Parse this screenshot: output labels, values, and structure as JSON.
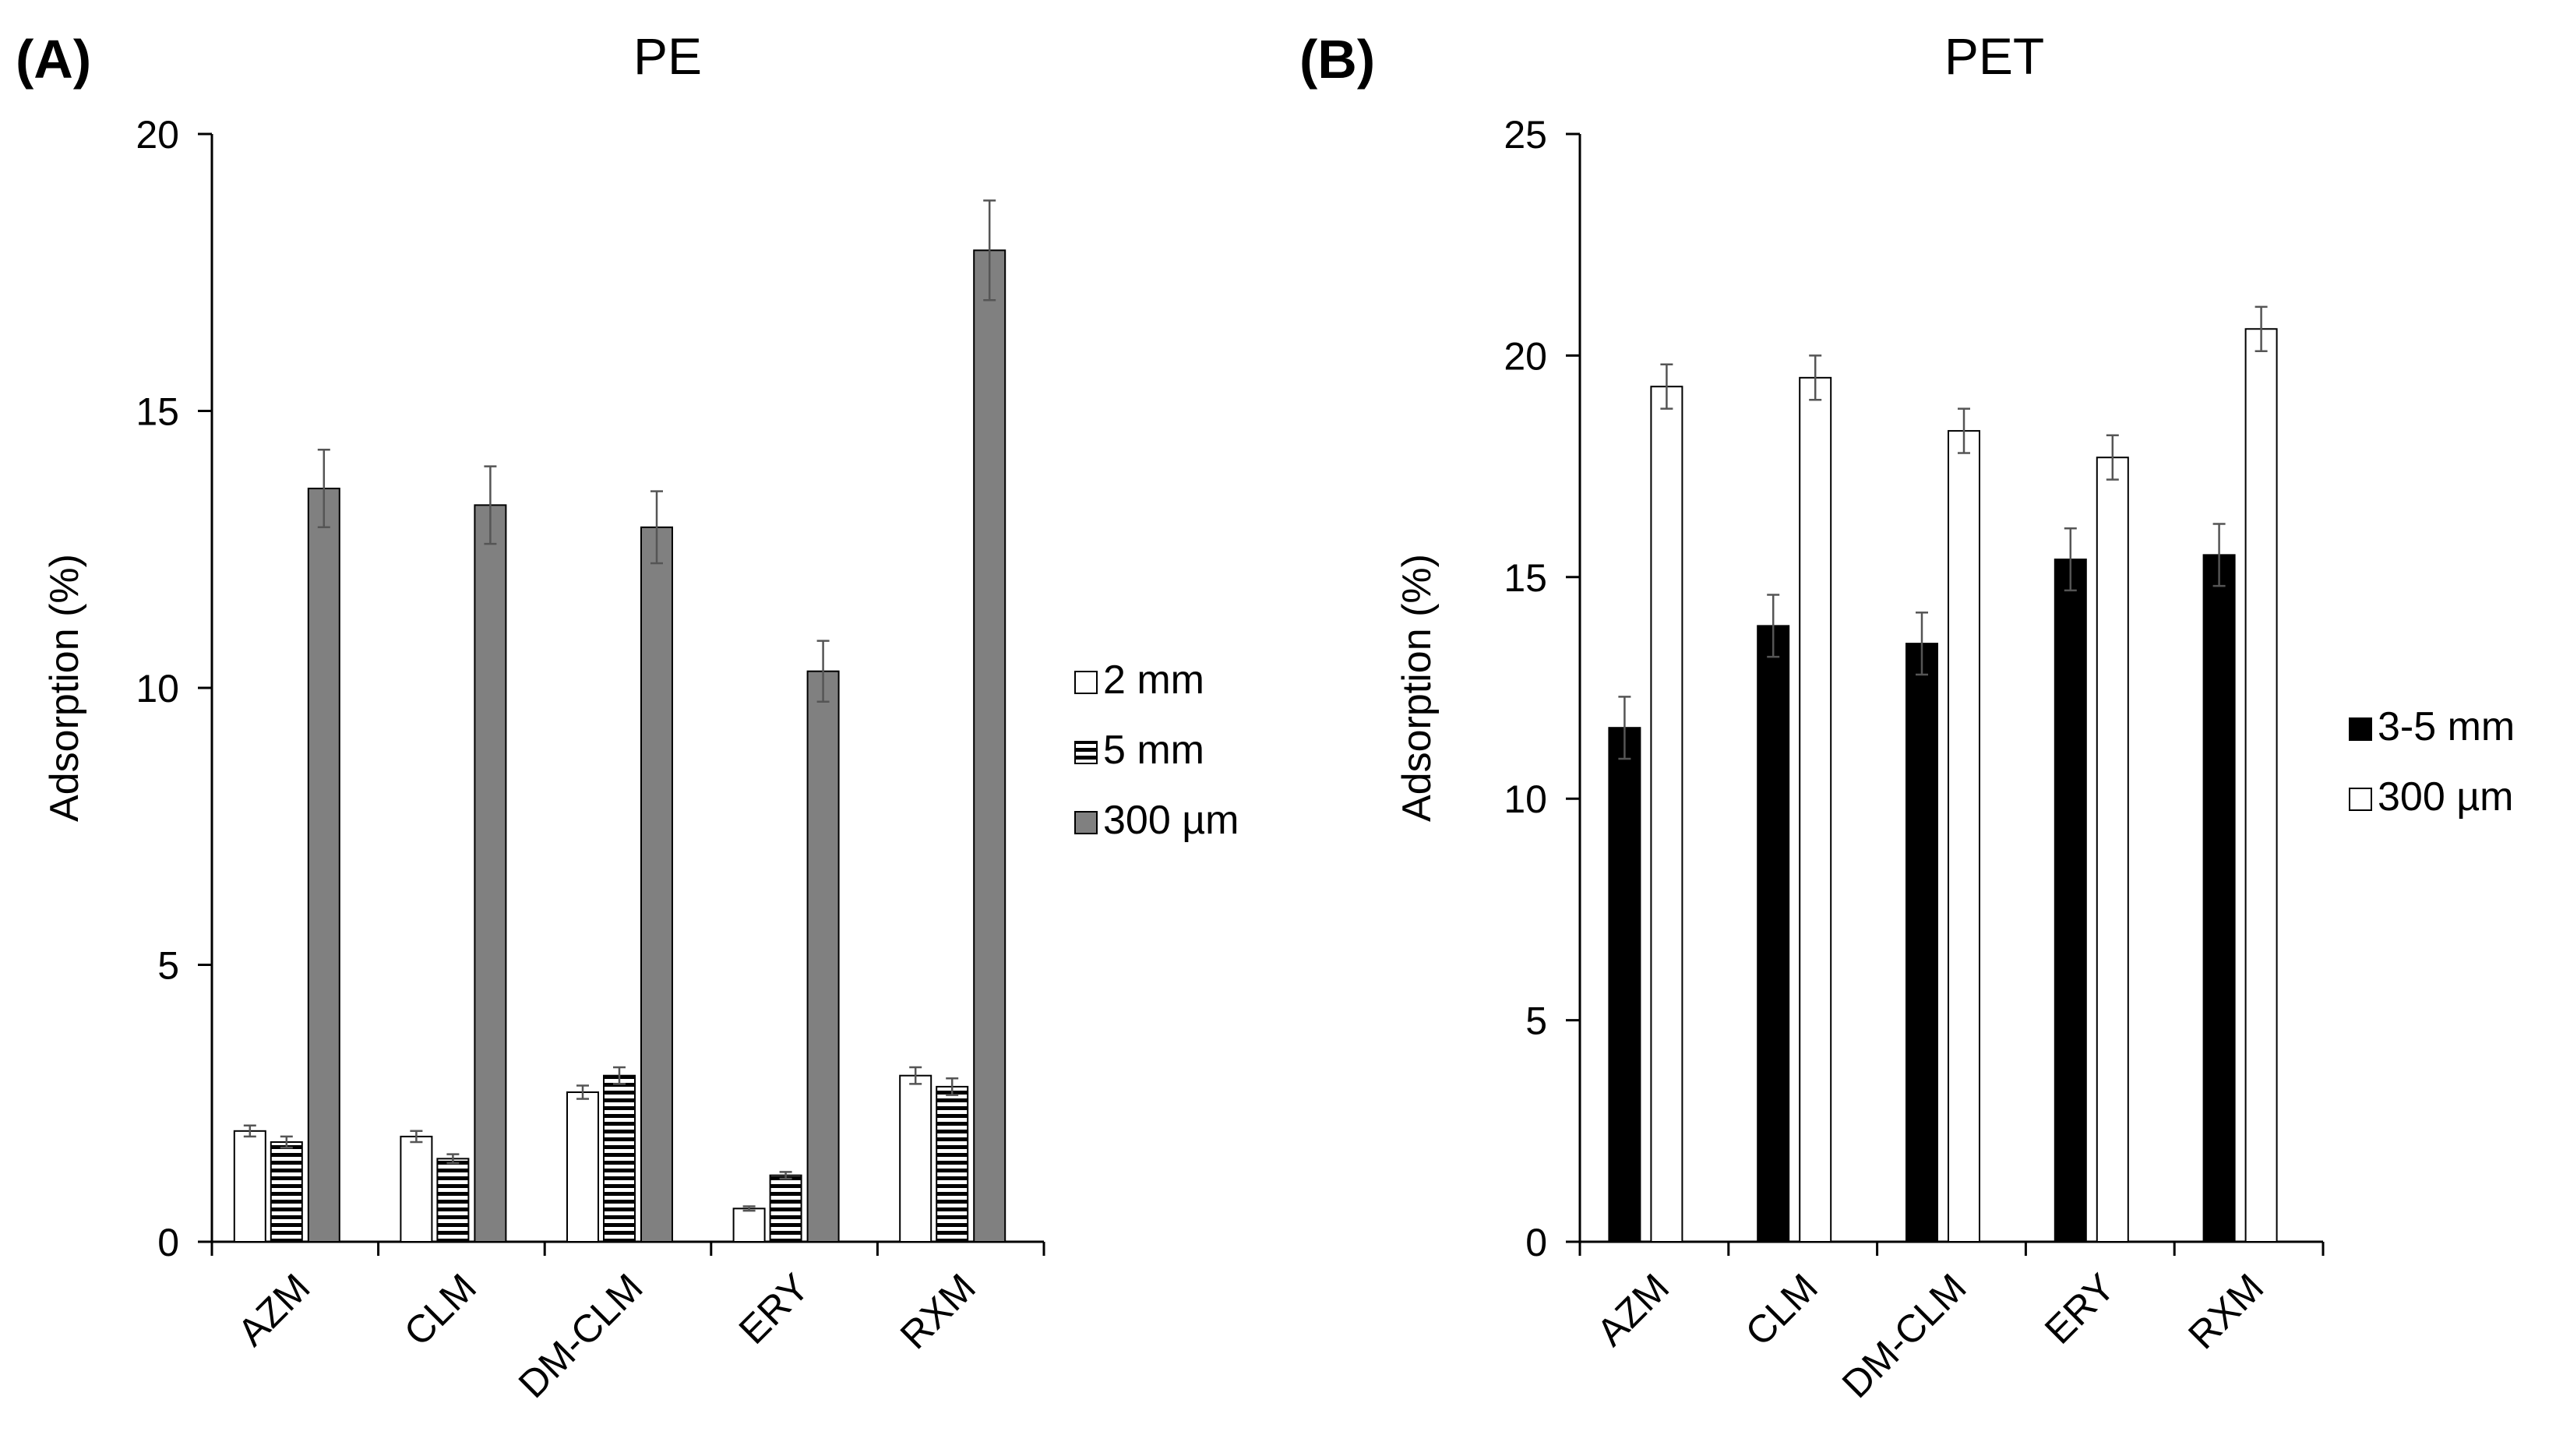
{
  "chart_data": [
    {
      "type": "bar",
      "panel_label": "(A)",
      "title": "PE",
      "xlabel": "",
      "ylabel": "Adsorption (%)",
      "ylim": [
        0,
        20
      ],
      "yticks": [
        0,
        5,
        10,
        15,
        20
      ],
      "categories": [
        "AZM",
        "CLM",
        "DM-CLM",
        "ERY",
        "RXM"
      ],
      "series": [
        {
          "name": "2 mm",
          "fill": "#ffffff",
          "pattern": "none",
          "values": [
            2.0,
            1.9,
            2.7,
            0.6,
            3.0
          ],
          "errors": [
            0.1,
            0.1,
            0.12,
            0.04,
            0.15
          ]
        },
        {
          "name": "5 mm",
          "fill": "#ffffff",
          "pattern": "horizontal-stripes",
          "values": [
            1.8,
            1.5,
            3.0,
            1.2,
            2.8
          ],
          "errors": [
            0.1,
            0.08,
            0.15,
            0.06,
            0.15
          ]
        },
        {
          "name": "300 µm",
          "fill": "#808080",
          "pattern": "none",
          "values": [
            13.6,
            13.3,
            12.9,
            10.3,
            17.9
          ],
          "errors": [
            0.7,
            0.7,
            0.65,
            0.55,
            0.9
          ]
        }
      ],
      "legend": "right"
    },
    {
      "type": "bar",
      "panel_label": "(B)",
      "title": "PET",
      "xlabel": "",
      "ylabel": "Adsorption (%)",
      "ylim": [
        0,
        25
      ],
      "yticks": [
        0,
        5,
        10,
        15,
        20,
        25
      ],
      "categories": [
        "AZM",
        "CLM",
        "DM-CLM",
        "ERY",
        "RXM"
      ],
      "series": [
        {
          "name": "3-5 mm",
          "fill": "#000000",
          "pattern": "none",
          "values": [
            11.6,
            13.9,
            13.5,
            15.4,
            15.5
          ],
          "errors": [
            0.7,
            0.7,
            0.7,
            0.7,
            0.7
          ]
        },
        {
          "name": "300 µm",
          "fill": "#ffffff",
          "pattern": "none",
          "values": [
            19.3,
            19.5,
            18.3,
            17.7,
            20.6
          ],
          "errors": [
            0.5,
            0.5,
            0.5,
            0.5,
            0.5
          ]
        }
      ],
      "legend": "right"
    }
  ]
}
